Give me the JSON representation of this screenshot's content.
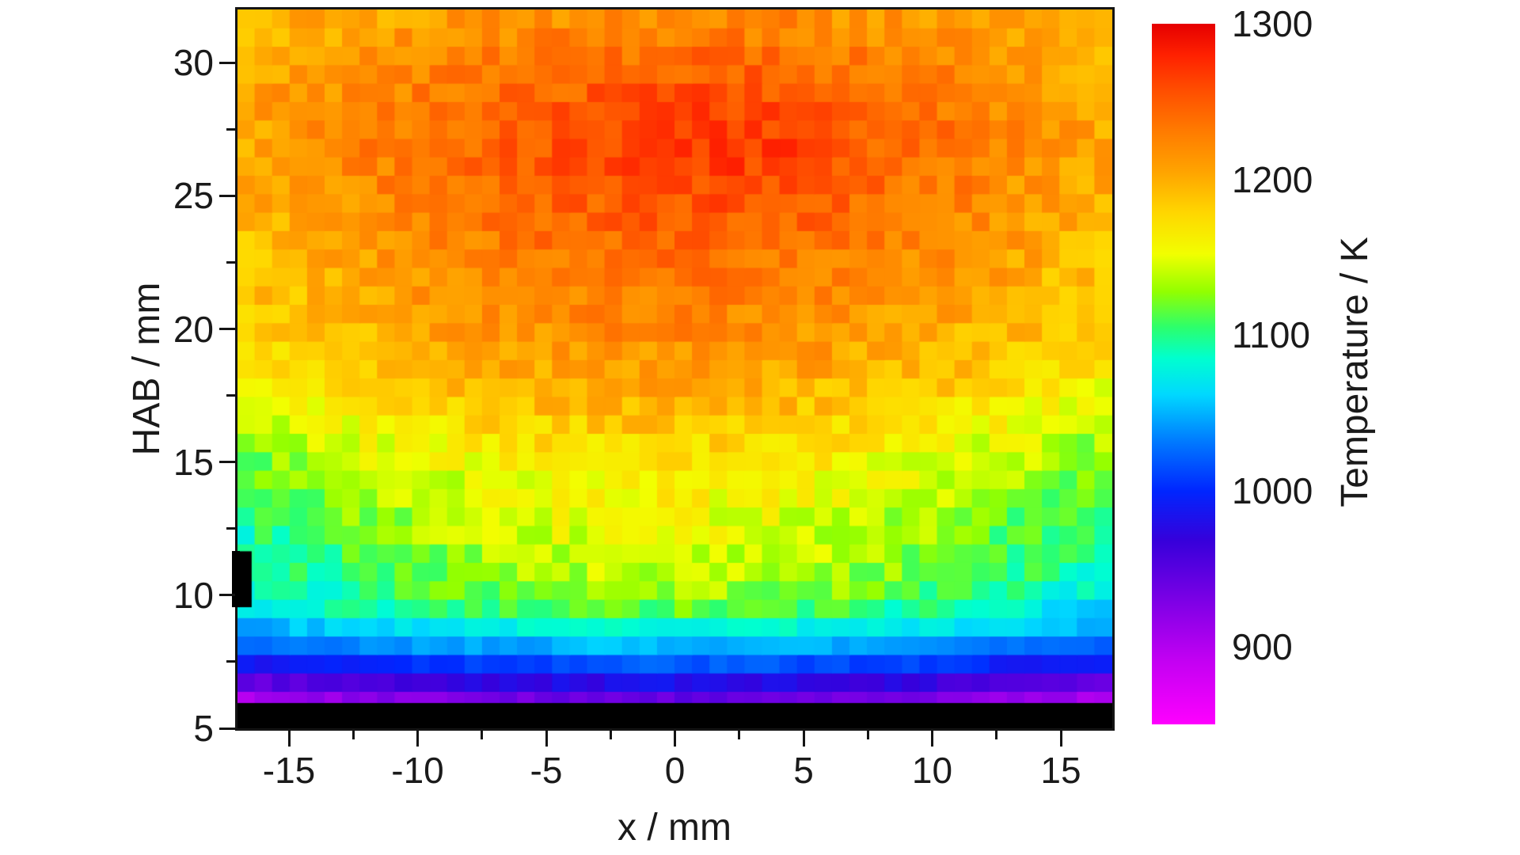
{
  "figure": {
    "background": "#ffffff",
    "text_color": "#1a1a1a",
    "axis_color": "#141414"
  },
  "chart_data": {
    "type": "heatmap",
    "title": "",
    "xlabel": "x / mm",
    "ylabel": "HAB / mm",
    "colorbar_label": "Temperature / K",
    "x_range": [
      -17,
      17
    ],
    "y_range": [
      5,
      32
    ],
    "x_ticks": [
      -15,
      -10,
      -5,
      0,
      5,
      10,
      15
    ],
    "x_minor_ticks": [
      -12.5,
      -7.5,
      -2.5,
      2.5,
      7.5,
      12.5
    ],
    "y_ticks": [
      5,
      10,
      15,
      20,
      25,
      30
    ],
    "y_minor_ticks": [
      7.5,
      12.5,
      17.5,
      22.5,
      27.5
    ],
    "grid_lines": false,
    "colorbar": {
      "min": 850,
      "max": 1300,
      "ticks": [
        1300,
        1200,
        1100,
        1000,
        900
      ]
    },
    "colormap": [
      [
        850,
        "#ff00ff"
      ],
      [
        893,
        "#c000f2"
      ],
      [
        935,
        "#7300e4"
      ],
      [
        968,
        "#3700db"
      ],
      [
        1000,
        "#0026ff"
      ],
      [
        1032,
        "#007bff"
      ],
      [
        1062,
        "#00d9ff"
      ],
      [
        1085,
        "#00ffd0"
      ],
      [
        1105,
        "#2cff6d"
      ],
      [
        1128,
        "#93ff00"
      ],
      [
        1152,
        "#f2ff00"
      ],
      [
        1178,
        "#ffd800"
      ],
      [
        1205,
        "#ffa400"
      ],
      [
        1232,
        "#ff7a00"
      ],
      [
        1258,
        "#ff4d00"
      ],
      [
        1280,
        "#ff2100"
      ],
      [
        1300,
        "#e60000"
      ]
    ],
    "grid": {
      "nx": 50,
      "ny": 39
    },
    "field": {
      "description": "Pixelated flame temperature field: hottest band (~1250-1280 K, red) around HAB 23-29 near burner centerline, cooling toward yellow (~1150 K) at HAB 10-15, then thin horizontal layers of green/cyan/blue/violet (1100-900 K) between HAB 6 and 10; no data (black) below HAB ~6; cooler toward left/right edges.",
      "hab_points": [
        5.6,
        6.0,
        6.4,
        6.9,
        7.4,
        7.9,
        8.4,
        8.9,
        9.4,
        10,
        11,
        12,
        13,
        14,
        15,
        16,
        17,
        18,
        19,
        20,
        21,
        22,
        23,
        24,
        25,
        26,
        27,
        28,
        29,
        30,
        31,
        32
      ],
      "center_T": [
        912,
        940,
        965,
        990,
        1018,
        1045,
        1065,
        1088,
        1110,
        1130,
        1142,
        1150,
        1155,
        1162,
        1170,
        1182,
        1195,
        1205,
        1215,
        1222,
        1228,
        1233,
        1238,
        1243,
        1247,
        1252,
        1255,
        1252,
        1245,
        1237,
        1228,
        1220
      ],
      "edge_T": [
        888,
        902,
        925,
        950,
        982,
        1010,
        1032,
        1050,
        1062,
        1075,
        1082,
        1090,
        1098,
        1108,
        1118,
        1132,
        1146,
        1158,
        1168,
        1176,
        1182,
        1186,
        1190,
        1194,
        1198,
        1202,
        1204,
        1204,
        1202,
        1198,
        1194,
        1190
      ],
      "edge_exponent": 1.7,
      "noise_K": 17,
      "noise_low_K": 9,
      "noise_low_below_hab": 9.5,
      "hotspot": {
        "x": 2,
        "hab": 27,
        "amplitude_K": 16,
        "sigma_x_mm": 4.5,
        "sigma_hab_mm": 2.2
      },
      "no_data_below_hab": 5.95,
      "probe_marker": {
        "x_min": -17,
        "x_max": -16.45,
        "hab_min": 9.55,
        "hab_max": 11.65
      }
    },
    "seed": 42
  }
}
